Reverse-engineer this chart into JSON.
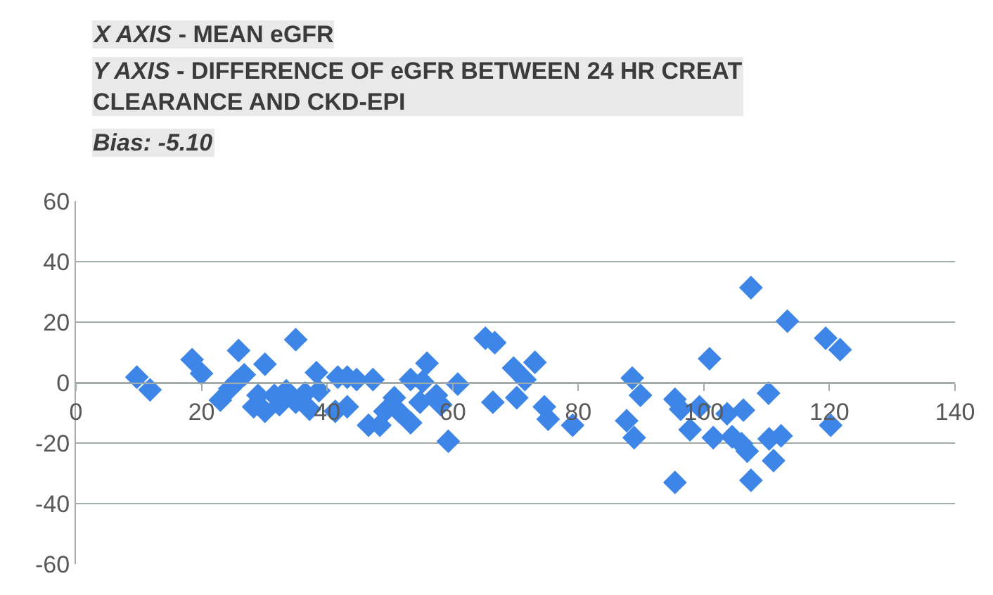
{
  "chart_data": {
    "type": "scatter",
    "annotations": [
      "X AXIS - MEAN eGFR",
      "Y AXIS - DIFFERENCE OF eGFR BETWEEN 24 HR CREAT CLEARANCE AND CKD-EPI",
      "Bias: -5.10"
    ],
    "x": [
      9.7,
      11.8,
      18.5,
      20.0,
      23.0,
      24.5,
      25.6,
      25.9,
      26.8,
      28.3,
      29.0,
      30.1,
      30.1,
      31.6,
      32.4,
      33.5,
      35.0,
      35.0,
      36.5,
      37.2,
      38.3,
      38.7,
      41.3,
      41.7,
      43.2,
      43.2,
      44.7,
      46.6,
      47.3,
      48.4,
      49.2,
      50.7,
      51.4,
      53.3,
      53.3,
      54.8,
      55.2,
      55.9,
      57.4,
      58.1,
      59.3,
      60.8,
      65.2,
      66.7,
      66.4,
      69.7,
      71.5,
      73.1,
      70.2,
      74.6,
      75.2,
      79.1,
      88.6,
      89.9,
      87.7,
      88.9,
      95.4,
      96.3,
      97.8,
      99.3,
      95.4,
      100.9,
      101.5,
      103.7,
      106.3,
      104.5,
      106.0,
      106.9,
      107.5,
      107.5,
      110.3,
      110.4,
      112.3,
      111.1,
      113.3,
      119.4,
      121.7,
      120.2
    ],
    "values": [
      1.8,
      -2.4,
      7.6,
      3.0,
      -5.8,
      -2.0,
      0.3,
      10.6,
      2.6,
      -8.0,
      -4.2,
      6.1,
      -9.5,
      -4.2,
      -7.3,
      -2.7,
      14.2,
      -6.5,
      -3.5,
      -8.8,
      3.3,
      -2.7,
      -9.5,
      1.8,
      1.8,
      -8.0,
      1.0,
      -14.1,
      1.0,
      -14.1,
      -9.5,
      -5.0,
      -9.5,
      1.0,
      -13.3,
      -6.5,
      0.3,
      6.4,
      -4.2,
      -7.3,
      -19.4,
      -0.5,
      14.7,
      13.2,
      -6.5,
      4.8,
      1.0,
      6.7,
      -5.0,
      -8.0,
      -12.1,
      -14.1,
      1.5,
      -4.2,
      -12.6,
      -18.2,
      -5.5,
      -8.8,
      -15.6,
      -8.0,
      -33.0,
      7.9,
      -18.2,
      -10.3,
      -9.1,
      -17.9,
      -20.2,
      -22.7,
      -32.3,
      31.4,
      -3.5,
      -18.6,
      -17.6,
      -25.8,
      20.3,
      14.7,
      10.9,
      -14.1
    ],
    "color": "#3d85e6",
    "marker": "diamond",
    "xlim": [
      0,
      140
    ],
    "xticks": [
      0,
      20,
      40,
      60,
      80,
      100,
      120,
      140
    ],
    "ylim": [
      -60,
      60
    ],
    "yticks": [
      -60,
      -40,
      -20,
      0,
      20,
      40,
      60
    ],
    "grid": "y"
  }
}
